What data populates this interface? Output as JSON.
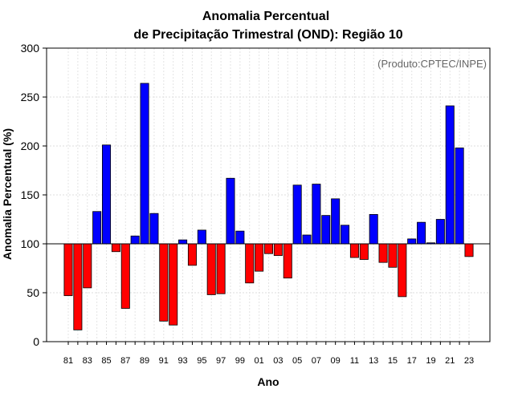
{
  "chart_data": {
    "type": "bar",
    "title_line1": "Anomalia Percentual",
    "title_line2": "de Precipitação Trimestral (OND): Região 10",
    "xlabel": "Ano",
    "ylabel": "Anomalia Percentual (%)",
    "annotation": "(Produto:CPTEC/INPE)",
    "baseline": 100,
    "ylim": [
      0,
      300
    ],
    "yticks": [
      0,
      50,
      100,
      150,
      200,
      250,
      300
    ],
    "grid": true,
    "colors": {
      "above": "#0000ff",
      "below": "#ff0000"
    },
    "categories": [
      "81",
      "82",
      "83",
      "84",
      "85",
      "86",
      "87",
      "88",
      "89",
      "90",
      "91",
      "92",
      "93",
      "94",
      "95",
      "96",
      "97",
      "98",
      "99",
      "00",
      "01",
      "02",
      "03",
      "04",
      "05",
      "06",
      "07",
      "08",
      "09",
      "10",
      "11",
      "12",
      "13",
      "14",
      "15",
      "16",
      "17",
      "18",
      "19",
      "20",
      "21",
      "22",
      "23"
    ],
    "xtick_labels": [
      "81",
      "83",
      "85",
      "87",
      "89",
      "91",
      "93",
      "95",
      "97",
      "99",
      "01",
      "03",
      "05",
      "07",
      "09",
      "11",
      "13",
      "15",
      "17",
      "19",
      "21",
      "23"
    ],
    "values": [
      47,
      12,
      55,
      133,
      201,
      92,
      34,
      108,
      264,
      131,
      21,
      17,
      104,
      78,
      114,
      48,
      49,
      167,
      113,
      60,
      72,
      90,
      88,
      65,
      160,
      109,
      161,
      129,
      146,
      119,
      86,
      84,
      130,
      81,
      76,
      46,
      105,
      122,
      101,
      125,
      241,
      198,
      87
    ]
  }
}
